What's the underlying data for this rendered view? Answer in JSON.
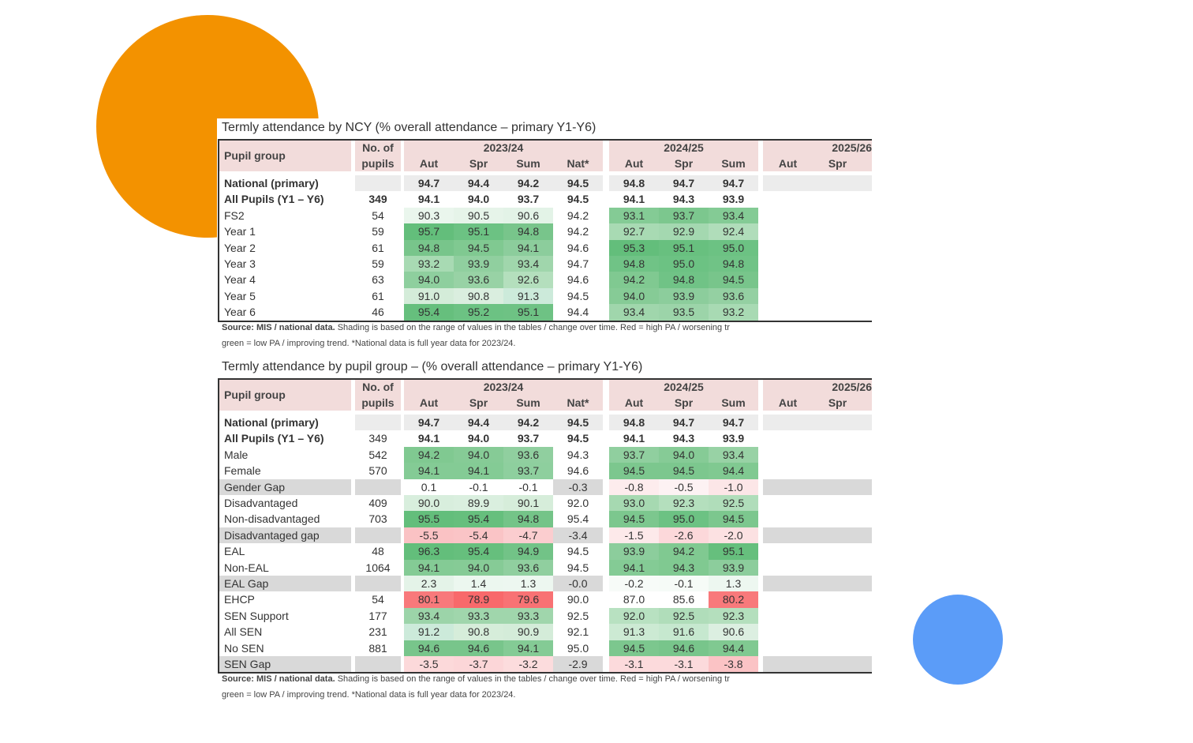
{
  "tables": [
    {
      "title": "Termly attendance by NCY (% overall attendance – primary Y1-Y6)",
      "header": {
        "group": "Pupil group",
        "pupils": [
          "No. of",
          "pupils"
        ],
        "years": [
          {
            "label": "2023/24",
            "terms": [
              "Aut",
              "Spr",
              "Sum",
              "Nat*"
            ]
          },
          {
            "label": "2024/25",
            "terms": [
              "Aut",
              "Spr",
              "Sum"
            ]
          },
          {
            "label": "2025/26",
            "terms": [
              "Aut",
              "Spr"
            ]
          }
        ]
      },
      "rows": [
        {
          "label": "National (primary)",
          "pupils": null,
          "values": [
            "94.7",
            "94.4",
            "94.2",
            "94.5",
            "94.8",
            "94.7",
            "94.7"
          ],
          "shades": [
            null,
            null,
            null,
            null,
            null,
            null,
            null
          ]
        },
        {
          "label": "All Pupils (Y1 – Y6)",
          "pupils": "349",
          "values": [
            "94.1",
            "94.0",
            "93.7",
            "94.5",
            "94.1",
            "94.3",
            "93.9"
          ],
          "shades": [
            null,
            null,
            null,
            null,
            null,
            null,
            null
          ]
        },
        {
          "label": "FS2",
          "pupils": "54",
          "values": [
            "90.3",
            "90.5",
            "90.6",
            "94.2",
            "93.1",
            "93.7",
            "93.4"
          ],
          "shades": [
            "#eaf6ed",
            "#e6f4e9",
            "#e3f3e7",
            null,
            "#84cb95",
            "#7cc78e",
            "#84cb95"
          ]
        },
        {
          "label": "Year 1",
          "pupils": "59",
          "values": [
            "95.7",
            "95.1",
            "94.8",
            "94.2",
            "92.7",
            "92.9",
            "92.4"
          ],
          "shades": [
            "#63be7b",
            "#6cc283",
            "#78c58b",
            null,
            "#a8dab3",
            "#a4d8b0",
            "#b0ddba"
          ]
        },
        {
          "label": "Year 2",
          "pupils": "61",
          "values": [
            "94.8",
            "94.5",
            "94.1",
            "94.6",
            "95.3",
            "95.1",
            "95.0"
          ],
          "shades": [
            "#78c58b",
            "#80c991",
            "#8ccd9c",
            null,
            "#63be7b",
            "#68c07f",
            "#6cc283"
          ]
        },
        {
          "label": "Year 3",
          "pupils": "59",
          "values": [
            "93.2",
            "93.9",
            "93.4",
            "94.7",
            "94.8",
            "95.0",
            "94.8"
          ],
          "shades": [
            "#a8dab3",
            "#90cf9f",
            "#a0d6ac",
            null,
            "#70c386",
            "#6cc283",
            "#70c386"
          ]
        },
        {
          "label": "Year 4",
          "pupils": "63",
          "values": [
            "94.0",
            "93.6",
            "92.6",
            "94.6",
            "94.2",
            "94.8",
            "94.5"
          ],
          "shades": [
            "#8ecf9e",
            "#98d2a5",
            "#b4dfbd",
            null,
            "#80c991",
            "#70c386",
            "#78c58b"
          ]
        },
        {
          "label": "Year 5",
          "pupils": "61",
          "values": [
            "91.0",
            "90.8",
            "91.3",
            "94.5",
            "94.0",
            "93.9",
            "93.6"
          ],
          "shades": [
            "#d4ecd9",
            "#daeedf",
            "#cceada",
            null,
            "#86cb96",
            "#8ccd9c",
            "#94d0a2"
          ]
        },
        {
          "label": "Year 6",
          "pupils": "46",
          "values": [
            "95.4",
            "95.2",
            "95.1",
            "94.4",
            "93.4",
            "93.5",
            "93.2"
          ],
          "shades": [
            "#66bf7d",
            "#6cc283",
            "#6ec284",
            null,
            "#a0d6ac",
            "#9cd4a9",
            "#a8dab3"
          ]
        }
      ],
      "source": "Source: MIS / national data.",
      "note": [
        "Shading is based on the range of values in the tables / change over time. Red = high PA / worsening tr",
        "green = low PA / improving trend. *National data is full year data for 2023/24."
      ]
    },
    {
      "title": "Termly attendance by pupil group – (% overall attendance – primary Y1-Y6)",
      "header": {
        "group": "Pupil group",
        "pupils": [
          "No. of",
          "pupils"
        ],
        "years": [
          {
            "label": "2023/24",
            "terms": [
              "Aut",
              "Spr",
              "Sum",
              "Nat*"
            ]
          },
          {
            "label": "2024/25",
            "terms": [
              "Aut",
              "Spr",
              "Sum"
            ]
          },
          {
            "label": "2025/26",
            "terms": [
              "Aut",
              "Spr"
            ]
          }
        ]
      },
      "rows": [
        {
          "label": "National (primary)",
          "pupils": null,
          "values": [
            "94.7",
            "94.4",
            "94.2",
            "94.5",
            "94.8",
            "94.7",
            "94.7"
          ],
          "shades": [
            null,
            null,
            null,
            null,
            null,
            null,
            null
          ]
        },
        {
          "label": "All Pupils (Y1 – Y6)",
          "pupils": "349",
          "values": [
            "94.1",
            "94.0",
            "93.7",
            "94.5",
            "94.1",
            "94.3",
            "93.9"
          ],
          "shades": [
            null,
            null,
            null,
            null,
            null,
            null,
            null
          ]
        },
        {
          "label": "Male",
          "pupils": "542",
          "values": [
            "94.2",
            "94.0",
            "93.6",
            "94.3",
            "93.7",
            "94.0",
            "93.4"
          ],
          "shades": [
            "#80c991",
            "#86cb96",
            "#90cf9f",
            null,
            "#90cf9f",
            "#86cb96",
            "#98d2a5"
          ]
        },
        {
          "label": "Female",
          "pupils": "570",
          "values": [
            "94.1",
            "94.1",
            "93.7",
            "94.6",
            "94.5",
            "94.5",
            "94.4"
          ],
          "shades": [
            "#84cb95",
            "#84cb95",
            "#8ecf9e",
            null,
            "#7cc78e",
            "#7cc78e",
            "#80c991"
          ]
        },
        {
          "label": "Gender Gap",
          "pupils": null,
          "values": [
            "0.1",
            "-0.1",
            "-0.1",
            "-0.3",
            "-0.8",
            "-0.5",
            "-1.0"
          ],
          "shades": [
            null,
            null,
            null,
            null,
            "#fdeced",
            "#fdf2f3",
            "#fce6e7"
          ]
        },
        {
          "label": "Disadvantaged",
          "pupils": "409",
          "values": [
            "90.0",
            "89.9",
            "90.1",
            "92.0",
            "93.0",
            "92.3",
            "92.5"
          ],
          "shades": [
            "#d8eedd",
            "#daefdf",
            "#d6edda",
            null,
            "#a6d9b1",
            "#b4dfbd",
            "#b0ddba"
          ]
        },
        {
          "label": "Non-disadvantaged",
          "pupils": "703",
          "values": [
            "95.5",
            "95.4",
            "94.8",
            "95.4",
            "94.5",
            "95.0",
            "94.5"
          ],
          "shades": [
            "#63be7b",
            "#66bf7d",
            "#74c488",
            null,
            "#7cc78e",
            "#6cc283",
            "#7cc78e"
          ]
        },
        {
          "label": "Disadvantaged gap",
          "pupils": null,
          "values": [
            "-5.5",
            "-5.4",
            "-4.7",
            "-3.4",
            "-1.5",
            "-2.6",
            "-2.0"
          ],
          "shades": [
            "#fac2c4",
            "#fac4c6",
            "#fbcdcf",
            null,
            "#fde9ea",
            "#fcd8da",
            "#fce1e2"
          ]
        },
        {
          "label": "EAL",
          "pupils": "48",
          "values": [
            "96.3",
            "95.4",
            "94.9",
            "94.5",
            "93.9",
            "94.2",
            "95.1"
          ],
          "shades": [
            "#63be7b",
            "#66bf7d",
            "#72c387",
            null,
            "#8ccd9c",
            "#80c991",
            "#66bf7d"
          ]
        },
        {
          "label": "Non-EAL",
          "pupils": "1064",
          "values": [
            "94.1",
            "94.0",
            "93.6",
            "94.5",
            "94.1",
            "94.3",
            "93.9"
          ],
          "shades": [
            "#84cb95",
            "#86cb96",
            "#90cf9f",
            null,
            "#84cb95",
            "#80c991",
            "#8ccd9c"
          ]
        },
        {
          "label": "EAL Gap",
          "pupils": null,
          "values": [
            "2.3",
            "1.4",
            "1.3",
            "-0.0",
            "-0.2",
            "-0.1",
            "1.3"
          ],
          "shades": [
            "#e4f3e8",
            "#ecf7ef",
            "#edf7f0",
            null,
            "#f7fbf8",
            "#f6fbf7",
            "#edf7f0"
          ]
        },
        {
          "label": "EHCP",
          "pupils": "54",
          "values": [
            "80.1",
            "78.9",
            "79.6",
            "90.0",
            "87.0",
            "85.6",
            "80.2"
          ],
          "shades": [
            "#f8797b",
            "#f8696b",
            "#f87274",
            null,
            null,
            null,
            "#f8797b"
          ]
        },
        {
          "label": "SEN Support",
          "pupils": "177",
          "values": [
            "93.4",
            "93.3",
            "93.3",
            "92.5",
            "92.0",
            "92.5",
            "92.3"
          ],
          "shades": [
            "#9cd4a9",
            "#a0d6ac",
            "#a0d6ac",
            null,
            "#b8e1c1",
            "#b0ddba",
            "#b4dfbd"
          ]
        },
        {
          "label": "All SEN",
          "pupils": "231",
          "values": [
            "91.2",
            "90.8",
            "90.9",
            "92.1",
            "91.3",
            "91.6",
            "90.6"
          ],
          "shades": [
            "#cceada",
            "#d6edda",
            "#d4ecd9",
            null,
            "#ccead3",
            "#c6e8cf",
            "#dcefe1"
          ]
        },
        {
          "label": "No SEN",
          "pupils": "881",
          "values": [
            "94.6",
            "94.6",
            "94.1",
            "95.0",
            "94.5",
            "94.6",
            "94.4"
          ],
          "shades": [
            "#78c58b",
            "#78c58b",
            "#84cb95",
            null,
            "#7cc78e",
            "#78c58b",
            "#80c991"
          ]
        },
        {
          "label": "SEN Gap",
          "pupils": null,
          "values": [
            "-3.5",
            "-3.7",
            "-3.2",
            "-2.9",
            "-3.1",
            "-3.1",
            "-3.8"
          ],
          "shades": [
            "#fcd9da",
            "#fcd6d8",
            "#fcdcdd",
            null,
            "#fcdadc",
            "#fcdadc",
            "#fbc3c5"
          ]
        }
      ],
      "source": "Source: MIS / national data.",
      "note": [
        "Shading is based on the range of values in the tables / change over time. Red = high PA / worsening tr",
        "green = low PA / improving trend. *National data is full year data for 2023/24."
      ]
    }
  ]
}
